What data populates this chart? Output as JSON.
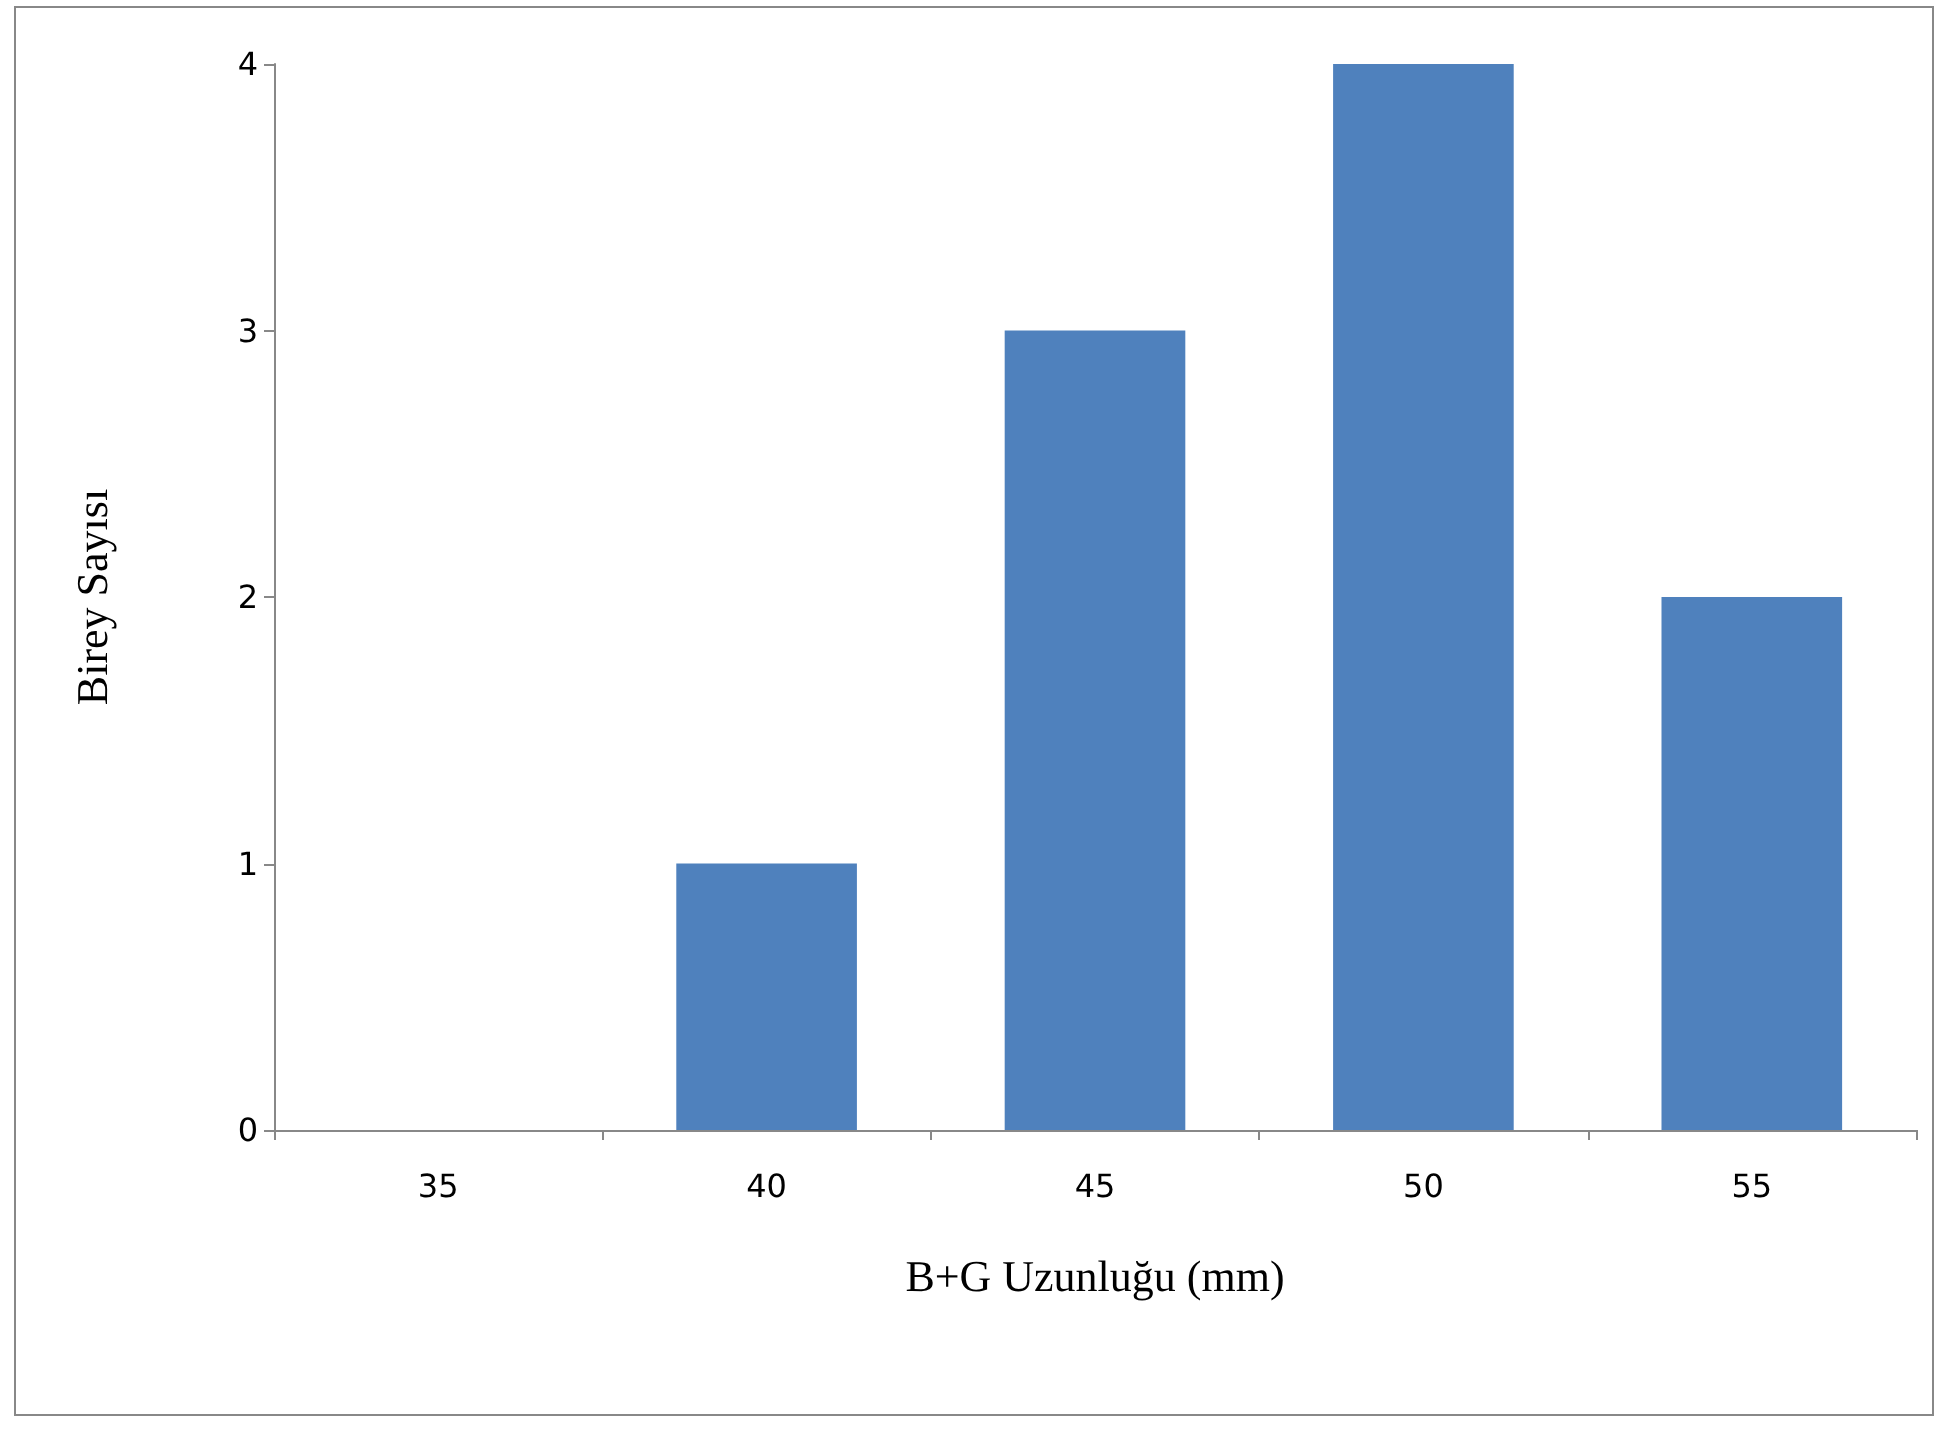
{
  "chart_data": {
    "type": "bar",
    "xlabel": "B+G Uzunluğu (mm)",
    "ylabel": "Birey Sayısı",
    "categories": [
      "35",
      "40",
      "45",
      "50",
      "55"
    ],
    "values": [
      0,
      1,
      3,
      4,
      2
    ],
    "color": "#4f81bd",
    "ylim": [
      0,
      4
    ],
    "yticks": [
      0,
      1,
      2,
      3,
      4
    ]
  }
}
